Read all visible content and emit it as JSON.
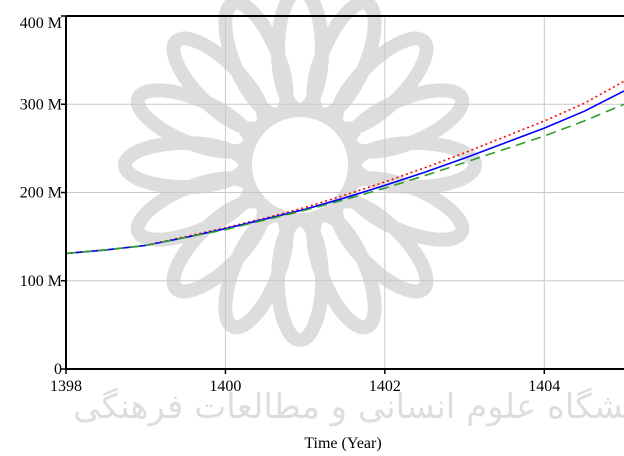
{
  "chart_data": {
    "type": "line",
    "title": "",
    "xlabel": "Time (Year)",
    "ylabel": "",
    "xlim": [
      1398,
      1405
    ],
    "ylim": [
      0,
      400000000
    ],
    "x_ticks": [
      1398,
      1400,
      1402,
      1404
    ],
    "x_tick_labels": [
      "1398",
      "1400",
      "1402",
      "1404"
    ],
    "y_ticks": [
      0,
      100000000,
      200000000,
      300000000,
      400000000
    ],
    "y_tick_labels": [
      "0",
      "100 M",
      "200 M",
      "300 M",
      "400 M"
    ],
    "grid": true,
    "legend": "none",
    "watermark": "پژوهشگاه علوم انسانی و مطالعات فرهنگی",
    "series": [
      {
        "color": "#ff0000",
        "style": "dotted",
        "x": [
          1398,
          1398.5,
          1399,
          1399.5,
          1400,
          1400.5,
          1401,
          1401.5,
          1402,
          1402.5,
          1403,
          1403.5,
          1404,
          1404.5,
          1405
        ],
        "y": [
          131000000,
          135000000,
          140000000,
          150000000,
          160000000,
          171000000,
          183000000,
          197000000,
          212000000,
          228000000,
          245000000,
          263000000,
          281000000,
          301000000,
          326000000
        ]
      },
      {
        "color": "#0000ff",
        "style": "solid",
        "x": [
          1398,
          1398.5,
          1399,
          1399.5,
          1400,
          1400.5,
          1401,
          1401.5,
          1402,
          1402.5,
          1403,
          1403.5,
          1404,
          1404.5,
          1405
        ],
        "y": [
          131000000,
          135000000,
          140000000,
          149000000,
          159000000,
          170000000,
          181000000,
          194000000,
          208000000,
          223000000,
          239000000,
          256000000,
          273000000,
          292000000,
          315000000
        ]
      },
      {
        "color": "#2e9e2e",
        "style": "dashed",
        "x": [
          1398,
          1398.5,
          1399,
          1399.5,
          1400,
          1400.5,
          1401,
          1401.5,
          1402,
          1402.5,
          1403,
          1403.5,
          1404,
          1404.5,
          1405
        ],
        "y": [
          131000000,
          135000000,
          140000000,
          149000000,
          158000000,
          169000000,
          180000000,
          192000000,
          205000000,
          219000000,
          234000000,
          249000000,
          264000000,
          281000000,
          300000000
        ]
      }
    ]
  }
}
